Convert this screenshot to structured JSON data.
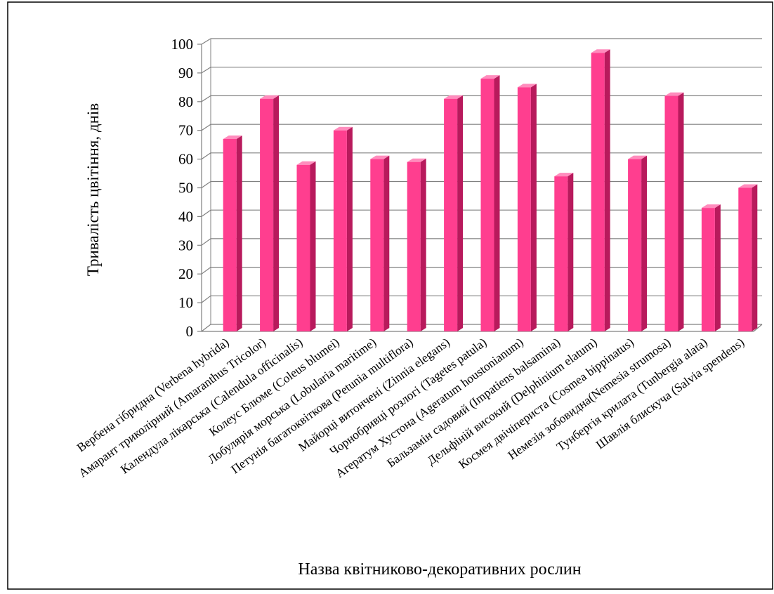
{
  "chart_data": {
    "type": "bar",
    "title": "",
    "xlabel": "Назва квітниково-декоративних рослин",
    "ylabel": "Тривалість цвітіння, днів",
    "ylim": [
      0,
      100
    ],
    "yticks": [
      0,
      10,
      20,
      30,
      40,
      50,
      60,
      70,
      80,
      90,
      100
    ],
    "grid": true,
    "legend": "none",
    "categories": [
      "Вербена гібридна (Verbena hybrida)",
      "Амарант триколірний (Amaranthus Tricolor)",
      "Календула лікарська (Calendula officinalis)",
      "Колеус Блюме (Coleus blumei)",
      "Лобулярія морська (Lobularia maritime)",
      "Петунія багатоквіткова (Petunia multiflora)",
      "Майорці витончені (Zinnia elegans)",
      "Чорнобривці розлогі (Tagetes patula)",
      "Агератум Хустона (Ageratum houstonianum)",
      "Бальзамін садовий (Impatiens balsamina)",
      "Дельфіній високий (Delphinium elatum)",
      "Космея двічіпериста (Cosmea bippinatus)",
      "Немезія зобовидна(Nemesia strumosa)",
      "Тунбергія крилата (Tunbergia alata)",
      "Шавлія блискуча (Salvia spendens)"
    ],
    "values": [
      67,
      81,
      58,
      70,
      60,
      59,
      81,
      88,
      85,
      54,
      97,
      60,
      82,
      43,
      50
    ],
    "colors": {
      "bar_front": "#ff3e8f",
      "bar_side": "#b81a5c",
      "bar_top": "#ff8cbd",
      "grid": "#808080",
      "axis": "#808080"
    }
  }
}
